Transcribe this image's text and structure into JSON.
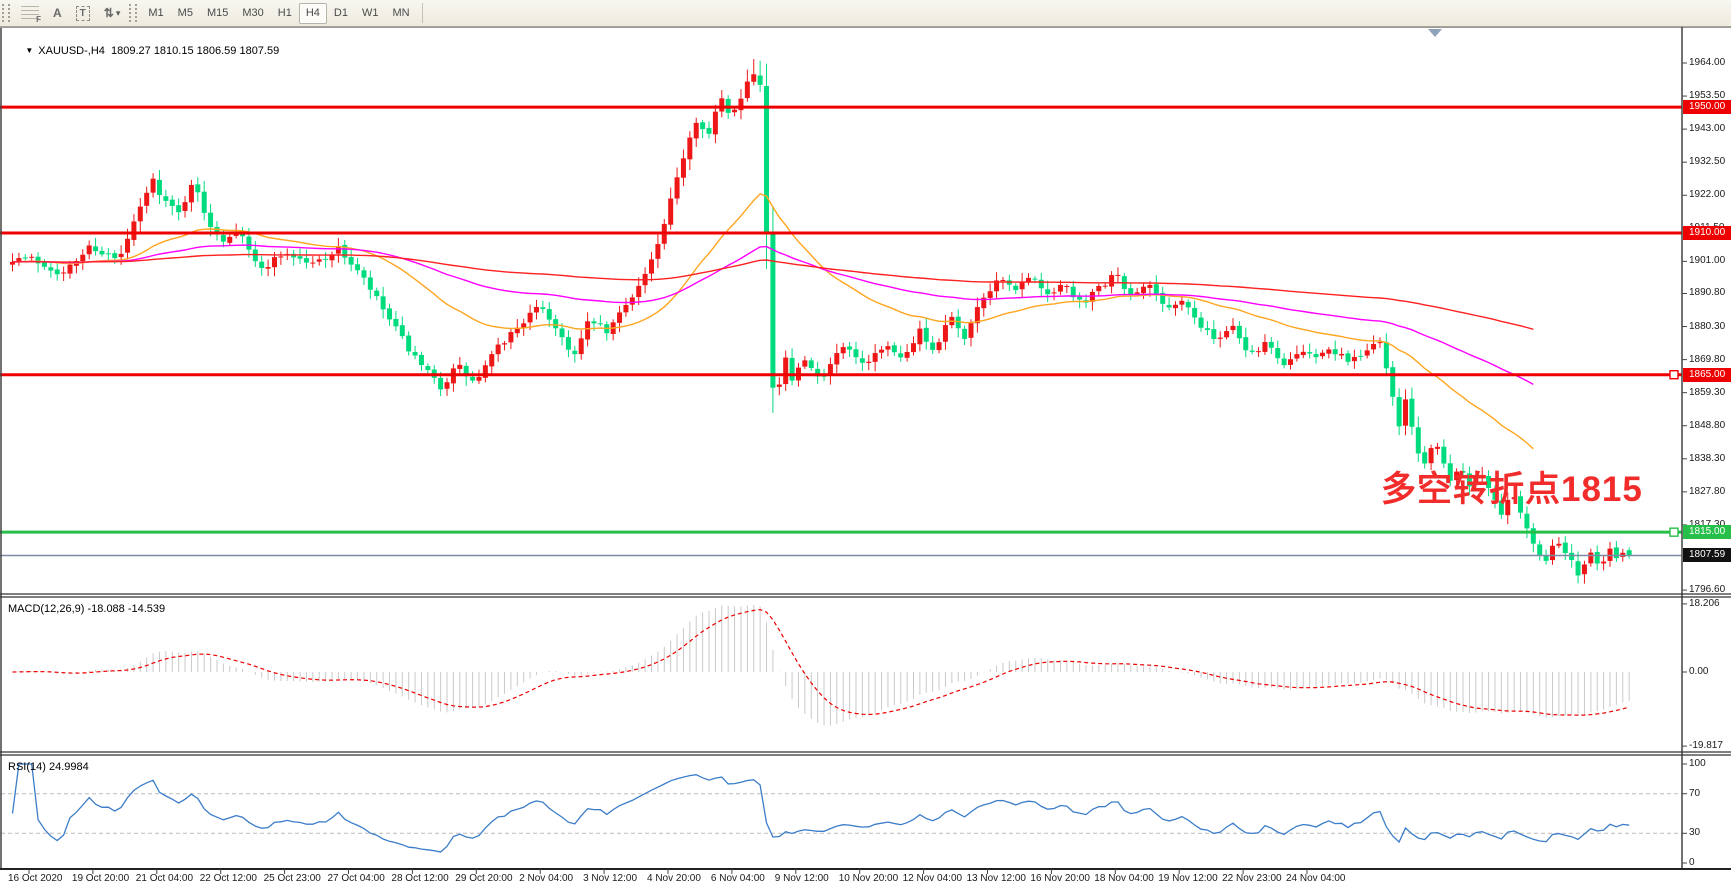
{
  "toolbar": {
    "tools": [
      {
        "name": "fibonacci-grid-tool",
        "glyph": "F"
      },
      {
        "name": "text-label-tool",
        "glyph": "A"
      },
      {
        "name": "text-box-tool",
        "glyph": "T"
      },
      {
        "name": "arrows-tool",
        "glyph": "⇅"
      },
      {
        "name": "arrows-dropdown-caret",
        "glyph": "▾"
      }
    ],
    "timeframes": [
      "M1",
      "M5",
      "M15",
      "M30",
      "H1",
      "H4",
      "D1",
      "W1",
      "MN"
    ],
    "active_timeframe": "H4"
  },
  "chart": {
    "title_icon": "▼",
    "title": "XAUUSD-,H4  1809.27 1810.15 1806.59 1807.59",
    "symbol": "XAUUSD-",
    "timeframe": "H4",
    "annotation": {
      "text": "多空转折点1815",
      "color": "#f22b2b"
    },
    "price_ticks": [
      {
        "label": "1964.00",
        "price": 1964.0
      },
      {
        "label": "1953.50",
        "price": 1953.5
      },
      {
        "label": "1943.00",
        "price": 1943.0
      },
      {
        "label": "1932.50",
        "price": 1932.5
      },
      {
        "label": "1922.00",
        "price": 1922.0
      },
      {
        "label": "1911.50",
        "price": 1911.5
      },
      {
        "label": "1901.00",
        "price": 1901.0
      },
      {
        "label": "1890.80",
        "price": 1890.8
      },
      {
        "label": "1880.30",
        "price": 1880.3
      },
      {
        "label": "1869.80",
        "price": 1869.8
      },
      {
        "label": "1859.30",
        "price": 1859.3
      },
      {
        "label": "1848.80",
        "price": 1848.8
      },
      {
        "label": "1838.30",
        "price": 1838.3
      },
      {
        "label": "1827.80",
        "price": 1827.8
      },
      {
        "label": "1817.30",
        "price": 1817.3
      },
      {
        "label": "1796.60",
        "price": 1796.6
      }
    ],
    "levels": [
      {
        "label": "1950.00",
        "price": 1950.0,
        "color": "#ee0000",
        "handle": false
      },
      {
        "label": "1910.00",
        "price": 1910.0,
        "color": "#ee0000",
        "handle": false
      },
      {
        "label": "1865.00",
        "price": 1865.0,
        "color": "#ee0000",
        "handle": true
      },
      {
        "label": "1815.00",
        "price": 1815.0,
        "color": "#26bf4a",
        "handle": true
      }
    ],
    "current_price": {
      "label": "1807.59",
      "price": 1807.59,
      "line_color": "#7a8ca4",
      "badge_color": "#111111"
    },
    "time_labels": [
      "16 Oct 2020",
      "19 Oct 20:00",
      "21 Oct 04:00",
      "22 Oct 12:00",
      "25 Oct 23:00",
      "27 Oct 04:00",
      "28 Oct 12:00",
      "29 Oct 20:00",
      "2 Nov 04:00",
      "3 Nov 12:00",
      "4 Nov 20:00",
      "6 Nov 04:00",
      "9 Nov 12:00",
      "10 Nov 20:00",
      "12 Nov 04:00",
      "13 Nov 12:00",
      "16 Nov 20:00",
      "18 Nov 04:00",
      "19 Nov 12:00",
      "22 Nov 23:00",
      "24 Nov 04:00"
    ]
  },
  "macd": {
    "name": "MACD(12,26,9)",
    "values": "-18.088 -14.539",
    "ticks": [
      {
        "label": "18.206",
        "value": 18.206
      },
      {
        "label": "0.00",
        "value": 0.0
      },
      {
        "label": "-19.817",
        "value": -19.817
      }
    ],
    "histogram_color": "#c9c9c9",
    "signal_color": "#ee0000"
  },
  "rsi": {
    "name": "RSI(14)",
    "value": "24.9984",
    "ticks": [
      {
        "label": "100",
        "value": 100
      },
      {
        "label": "70",
        "value": 70
      },
      {
        "label": "30",
        "value": 30
      },
      {
        "label": "0",
        "value": 0
      }
    ],
    "levels": [
      70,
      30
    ],
    "line_color": "#3b7dc8"
  },
  "chart_data": {
    "type": "candlestick",
    "symbol": "XAUUSD-",
    "timeframe": "H4",
    "note": "Chinese color convention: bullish candles red, bearish candles green",
    "bullish_color": "#ee1717",
    "bearish_color": "#00dc7d",
    "last_ohlc": {
      "open": 1809.27,
      "high": 1810.15,
      "low": 1806.59,
      "close": 1807.59
    },
    "key_levels": [
      1950.0,
      1910.0,
      1865.0,
      1815.0
    ],
    "price_axis_range": [
      1793.0,
      1968.0
    ],
    "moving_averages": [
      {
        "name": "fast-ma",
        "color": "#ffa520",
        "period": 34
      },
      {
        "name": "mid-ma",
        "color": "#ff00ff",
        "period": 90
      },
      {
        "name": "slow-ma",
        "color": "#ff2020",
        "period": 240
      }
    ],
    "indicators": [
      {
        "name": "MACD",
        "params": [
          12,
          26,
          9
        ],
        "current": [
          -18.088,
          -14.539
        ],
        "range": [
          -19.817,
          18.206
        ]
      },
      {
        "name": "RSI",
        "params": [
          14
        ],
        "current": 24.9984,
        "range": [
          0,
          100
        ]
      }
    ],
    "waypoints": [
      [
        28,
        1902
      ],
      [
        61,
        1897
      ],
      [
        88,
        1906
      ],
      [
        116,
        1901
      ],
      [
        138,
        1918
      ],
      [
        150,
        1927
      ],
      [
        163,
        1920
      ],
      [
        177,
        1916
      ],
      [
        190,
        1927
      ],
      [
        204,
        1914
      ],
      [
        221,
        1908
      ],
      [
        237,
        1912
      ],
      [
        256,
        1898
      ],
      [
        282,
        1904
      ],
      [
        309,
        1900
      ],
      [
        337,
        1905
      ],
      [
        364,
        1894
      ],
      [
        392,
        1880
      ],
      [
        417,
        1868
      ],
      [
        439,
        1861
      ],
      [
        455,
        1868
      ],
      [
        472,
        1862
      ],
      [
        494,
        1873
      ],
      [
        517,
        1881
      ],
      [
        539,
        1887
      ],
      [
        555,
        1879
      ],
      [
        572,
        1871
      ],
      [
        588,
        1883
      ],
      [
        605,
        1878
      ],
      [
        622,
        1887
      ],
      [
        640,
        1895
      ],
      [
        657,
        1907
      ],
      [
        671,
        1923
      ],
      [
        684,
        1938
      ],
      [
        695,
        1947
      ],
      [
        706,
        1941
      ],
      [
        718,
        1953
      ],
      [
        727,
        1947
      ],
      [
        736,
        1952
      ],
      [
        745,
        1958
      ],
      [
        753,
        1962
      ],
      [
        760,
        1955
      ],
      [
        768,
        1866
      ],
      [
        774,
        1853
      ],
      [
        781,
        1873
      ],
      [
        789,
        1862
      ],
      [
        800,
        1870
      ],
      [
        820,
        1863
      ],
      [
        840,
        1874
      ],
      [
        860,
        1868
      ],
      [
        883,
        1875
      ],
      [
        900,
        1869
      ],
      [
        916,
        1879
      ],
      [
        933,
        1873
      ],
      [
        947,
        1884
      ],
      [
        963,
        1877
      ],
      [
        980,
        1889
      ],
      [
        996,
        1896
      ],
      [
        1013,
        1891
      ],
      [
        1029,
        1897
      ],
      [
        1046,
        1889
      ],
      [
        1063,
        1894
      ],
      [
        1079,
        1887
      ],
      [
        1096,
        1892
      ],
      [
        1113,
        1897
      ],
      [
        1129,
        1889
      ],
      [
        1146,
        1894
      ],
      [
        1164,
        1886
      ],
      [
        1181,
        1890
      ],
      [
        1197,
        1881
      ],
      [
        1214,
        1875
      ],
      [
        1230,
        1880
      ],
      [
        1247,
        1871
      ],
      [
        1263,
        1875
      ],
      [
        1279,
        1868
      ],
      [
        1296,
        1873
      ],
      [
        1312,
        1870
      ],
      [
        1329,
        1874
      ],
      [
        1346,
        1868
      ],
      [
        1362,
        1872
      ],
      [
        1378,
        1875
      ],
      [
        1387,
        1863
      ],
      [
        1396,
        1849
      ],
      [
        1404,
        1857
      ],
      [
        1413,
        1843
      ],
      [
        1422,
        1836
      ],
      [
        1431,
        1844
      ],
      [
        1440,
        1839
      ],
      [
        1449,
        1831
      ],
      [
        1458,
        1837
      ],
      [
        1466,
        1829
      ],
      [
        1477,
        1835
      ],
      [
        1488,
        1827
      ],
      [
        1499,
        1821
      ],
      [
        1510,
        1827
      ],
      [
        1521,
        1818
      ],
      [
        1532,
        1811
      ],
      [
        1543,
        1805
      ],
      [
        1554,
        1813
      ],
      [
        1565,
        1807
      ],
      [
        1576,
        1802
      ],
      [
        1587,
        1808
      ],
      [
        1598,
        1804
      ],
      [
        1609,
        1810
      ],
      [
        1616,
        1806
      ],
      [
        1624,
        1809
      ],
      [
        1632,
        1807.6
      ]
    ]
  }
}
